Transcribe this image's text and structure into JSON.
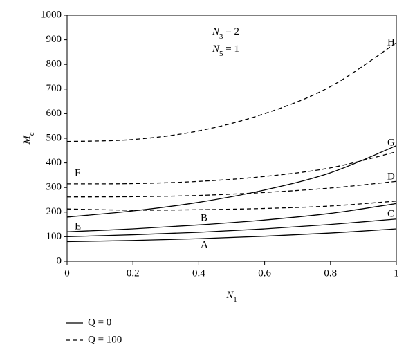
{
  "chart_data": {
    "type": "line",
    "x_label": {
      "main": "N",
      "sub": "1"
    },
    "y_label": {
      "main": "M",
      "sub": "c"
    },
    "annotations": [
      {
        "main": "N",
        "sub": "3",
        "rest": " = 2"
      },
      {
        "main": "N",
        "sub": "5",
        "rest": " = 1"
      }
    ],
    "x": [
      0,
      0.2,
      0.4,
      0.6,
      0.8,
      1
    ],
    "series": [
      {
        "name": "A",
        "color": "#000000",
        "dashed": false,
        "values": [
          80,
          85,
          92,
          102,
          115,
          132
        ]
      },
      {
        "name": "B",
        "color": "#000000",
        "dashed": true,
        "values": [
          213,
          208,
          210,
          215,
          225,
          245
        ]
      },
      {
        "name": "C",
        "color": "#000000",
        "dashed": false,
        "values": [
          100,
          108,
          118,
          132,
          150,
          172
        ]
      },
      {
        "name": "D",
        "color": "#000000",
        "dashed": true,
        "values": [
          262,
          263,
          268,
          280,
          298,
          325
        ]
      },
      {
        "name": "E",
        "color": "#000000",
        "dashed": false,
        "values": [
          120,
          132,
          148,
          168,
          195,
          235
        ]
      },
      {
        "name": "F",
        "color": "#000000",
        "dashed": true,
        "values": [
          315,
          316,
          325,
          345,
          380,
          445
        ]
      },
      {
        "name": "G",
        "color": "#000000",
        "dashed": false,
        "values": [
          180,
          205,
          240,
          290,
          360,
          470
        ]
      },
      {
        "name": "H",
        "color": "#000000",
        "dashed": true,
        "values": [
          487,
          495,
          530,
          600,
          710,
          888
        ]
      }
    ],
    "legend": [
      {
        "label": "Q = 0",
        "dashed": false
      },
      {
        "label": "Q = 100",
        "dashed": true
      }
    ],
    "xlim": [
      0,
      1
    ],
    "xticks": [
      0,
      0.2,
      0.4,
      0.6,
      0.8,
      1
    ],
    "ylim": [
      0,
      1000
    ],
    "yticks": [
      0,
      100,
      200,
      300,
      400,
      500,
      600,
      700,
      800,
      900,
      1000
    ],
    "grid": false
  }
}
